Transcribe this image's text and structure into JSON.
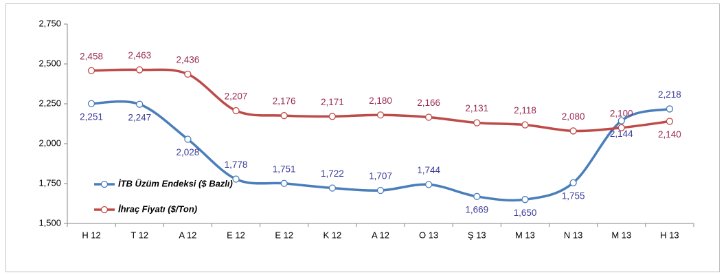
{
  "chart_data": {
    "type": "line",
    "categories": [
      "H 12",
      "T 12",
      "A 12",
      "E 12",
      "E 12",
      "K 12",
      "A 12",
      "O 13",
      "Ş 13",
      "M 13",
      "N 13",
      "M 13",
      "H 13"
    ],
    "series": [
      {
        "name": "İTB Üzüm Endeksi ($ Bazlı)",
        "color": "#4a7ebb",
        "values": [
          2251,
          2247,
          2028,
          1778,
          1751,
          1722,
          1707,
          1744,
          1669,
          1650,
          1755,
          2144,
          2218
        ],
        "value_labels": [
          "2,251",
          "2,247",
          "2,028",
          "1,778",
          "1,751",
          "1,722",
          "1,707",
          "1,744",
          "1,669",
          "1,650",
          "1,755",
          "2,144",
          "2,218"
        ]
      },
      {
        "name": "İhraç Fiyatı ($/Ton)",
        "color": "#be4b48",
        "values": [
          2458,
          2463,
          2436,
          2207,
          2176,
          2171,
          2180,
          2166,
          2131,
          2118,
          2080,
          2100,
          2140
        ],
        "value_labels": [
          "2,458",
          "2,463",
          "2,436",
          "2,207",
          "2,176",
          "2,171",
          "2,180",
          "2,166",
          "2,131",
          "2,118",
          "2,080",
          "2,100",
          "2,140"
        ]
      }
    ],
    "ylim": [
      1500,
      2750
    ],
    "yticks": [
      {
        "value": 1500,
        "label": "1,500"
      },
      {
        "value": 1750,
        "label": "1,750"
      },
      {
        "value": 2000,
        "label": "2,000"
      },
      {
        "value": 2250,
        "label": "2,250"
      },
      {
        "value": 2500,
        "label": "2,500"
      },
      {
        "value": 2750,
        "label": "2,750"
      }
    ],
    "grid": false,
    "legend": "left"
  }
}
